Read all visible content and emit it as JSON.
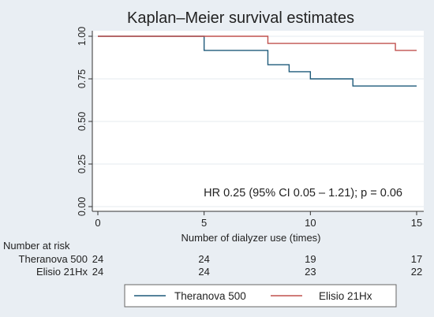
{
  "chart_data": {
    "type": "line",
    "title": "Kaplan–Meier survival estimates",
    "xlabel": "Number of dialyzer use (times)",
    "ylabel": "",
    "xlim": [
      0,
      15
    ],
    "ylim": [
      0,
      1
    ],
    "x_ticks": [
      0,
      5,
      10,
      15
    ],
    "y_ticks": [
      0,
      0.25,
      0.5,
      0.75,
      1
    ],
    "x_tick_labels": [
      "0",
      "5",
      "10",
      "15"
    ],
    "y_tick_labels": [
      "0.00",
      "0.25",
      "0.50",
      "0.75",
      "1.00"
    ],
    "grid": true,
    "step": true,
    "colors": {
      "plot_bg": "#ffffff",
      "page_bg": "#e9eef3",
      "grid": "#e6ebef",
      "axis": "#333333"
    },
    "series": [
      {
        "name": "Theranova 500",
        "color": "#1f5a7a",
        "x": [
          0,
          5,
          8,
          9,
          10,
          12,
          15
        ],
        "y": [
          1.0,
          0.917,
          0.833,
          0.792,
          0.75,
          0.708,
          0.708
        ]
      },
      {
        "name": "Elisio 21Hx",
        "color": "#c0504d",
        "x": [
          0,
          8,
          14,
          15
        ],
        "y": [
          1.0,
          0.958,
          0.917,
          0.917
        ]
      }
    ],
    "annotation": "HR 0.25 (95% CI 0.05 – 1.21); p = 0.06",
    "risk_table": {
      "title": "Number at risk",
      "times": [
        0,
        5,
        10,
        15
      ],
      "rows": [
        {
          "label": "Theranova 500",
          "counts": [
            "24",
            "24",
            "19",
            "17"
          ]
        },
        {
          "label": "Elisio 21Hx",
          "counts": [
            "24",
            "24",
            "23",
            "22"
          ]
        }
      ]
    },
    "legend": {
      "position": "bottom",
      "items": [
        {
          "label": "Theranova 500",
          "color": "#1f5a7a"
        },
        {
          "label": "Elisio 21Hx",
          "color": "#c0504d"
        }
      ]
    }
  }
}
